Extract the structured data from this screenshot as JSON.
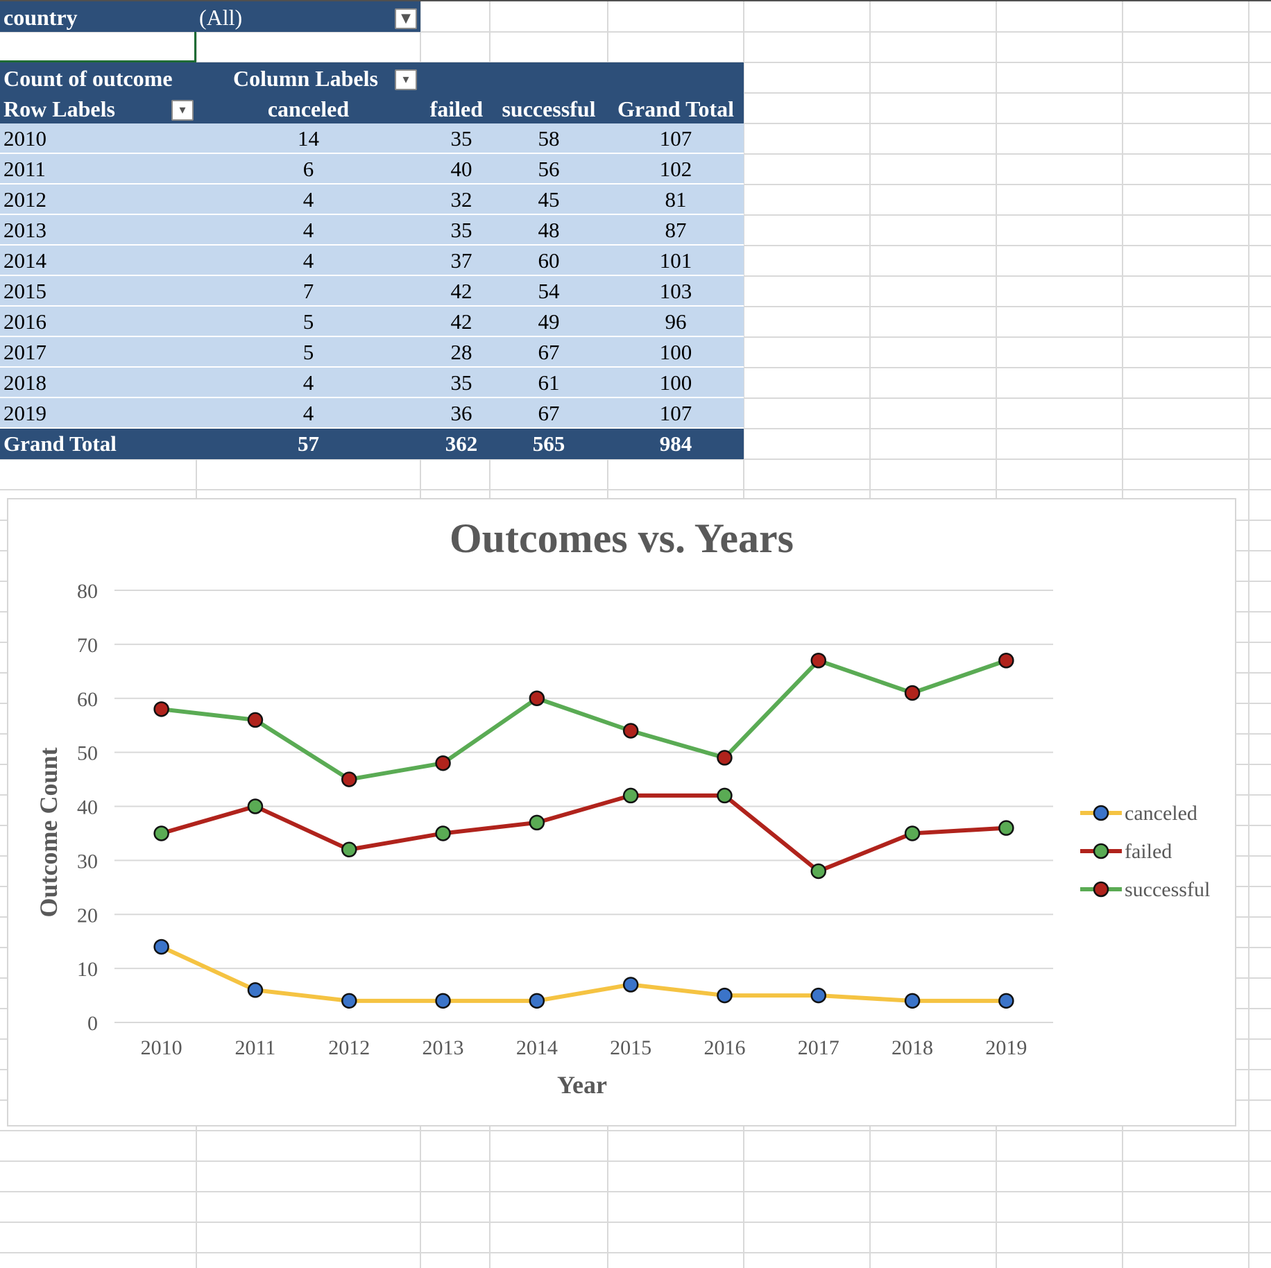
{
  "report_filter": {
    "field": "country",
    "value": "(All)",
    "dropdown_icon": "chevron-down-icon"
  },
  "pivot": {
    "value_field": "Count of outcome",
    "column_labels": "Column Labels",
    "row_labels": "Row Labels",
    "filter_icon": "filter-icon",
    "columns": [
      "canceled",
      "failed",
      "successful",
      "Grand Total"
    ],
    "rows": [
      {
        "label": "2010",
        "values": [
          "14",
          "35",
          "58",
          "107"
        ]
      },
      {
        "label": "2011",
        "values": [
          "6",
          "40",
          "56",
          "102"
        ]
      },
      {
        "label": "2012",
        "values": [
          "4",
          "32",
          "45",
          "81"
        ]
      },
      {
        "label": "2013",
        "values": [
          "4",
          "35",
          "48",
          "87"
        ]
      },
      {
        "label": "2014",
        "values": [
          "4",
          "37",
          "60",
          "101"
        ]
      },
      {
        "label": "2015",
        "values": [
          "7",
          "42",
          "54",
          "103"
        ]
      },
      {
        "label": "2016",
        "values": [
          "5",
          "42",
          "49",
          "96"
        ]
      },
      {
        "label": "2017",
        "values": [
          "5",
          "28",
          "67",
          "100"
        ]
      },
      {
        "label": "2018",
        "values": [
          "4",
          "35",
          "61",
          "100"
        ]
      },
      {
        "label": "2019",
        "values": [
          "4",
          "36",
          "67",
          "107"
        ]
      }
    ],
    "grand_total": {
      "label": "Grand Total",
      "values": [
        "57",
        "362",
        "565",
        "984"
      ]
    }
  },
  "chart_data": {
    "type": "line",
    "title": "Outcomes vs. Years",
    "xlabel": "Year",
    "ylabel": "Outcome Count",
    "categories": [
      "2010",
      "2011",
      "2012",
      "2013",
      "2014",
      "2015",
      "2016",
      "2017",
      "2018",
      "2019"
    ],
    "ylim": [
      0,
      80
    ],
    "yticks": [
      0,
      10,
      20,
      30,
      40,
      50,
      60,
      70,
      80
    ],
    "grid": true,
    "legend_position": "right",
    "series": [
      {
        "name": "canceled",
        "line_color": "#f5c342",
        "marker_color": "#3b74c9",
        "values": [
          14,
          6,
          4,
          4,
          4,
          7,
          5,
          5,
          4,
          4
        ]
      },
      {
        "name": "failed",
        "line_color": "#b0231c",
        "marker_color": "#5aab54",
        "values": [
          35,
          40,
          32,
          35,
          37,
          42,
          42,
          28,
          35,
          36
        ]
      },
      {
        "name": "successful",
        "line_color": "#5aab54",
        "marker_color": "#b0231c",
        "values": [
          58,
          56,
          45,
          48,
          60,
          54,
          49,
          67,
          61,
          67
        ]
      }
    ]
  }
}
